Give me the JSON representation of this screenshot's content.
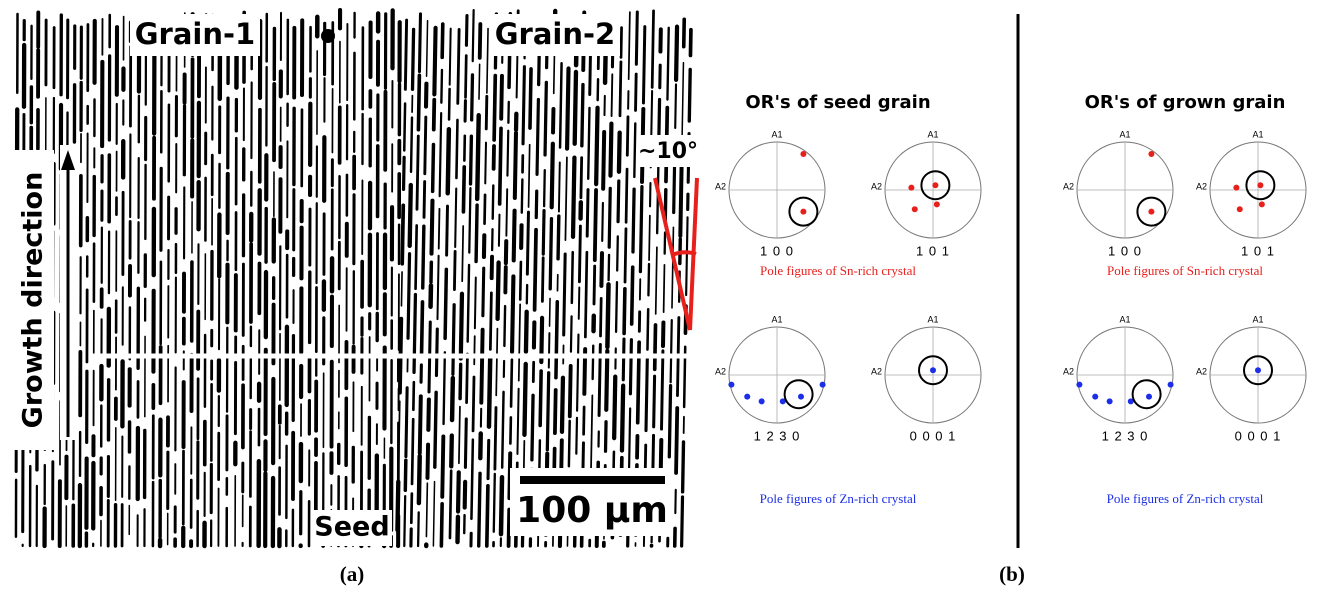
{
  "micrograph": {
    "labels": {
      "grain_1": "Grain-1",
      "grain_2": "Grain-2",
      "angle": "~10°",
      "growth_direction": "Growth direction",
      "seed": "Seed",
      "scale_bar": "100 µm"
    },
    "caption": "(a)"
  },
  "pole_figures": {
    "caption": "(b)",
    "axis_top": "A1",
    "axis_left": "A2",
    "panels": [
      {
        "title": "OR's of seed grain",
        "groups": [
          {
            "caption": "Pole figures of Sn-rich crystal",
            "color": "#e8201c",
            "figures": [
              {
                "label": "1 0 0"
              },
              {
                "label": "1 0 1"
              }
            ]
          },
          {
            "caption": "Pole figures of Zn-rich crystal",
            "color": "#1c2ee8",
            "figures": [
              {
                "label": "1 2 3 0"
              },
              {
                "label": "0 0 0 1"
              }
            ]
          }
        ]
      },
      {
        "title": "OR's of grown grain",
        "groups": [
          {
            "caption": "Pole figures of Sn-rich crystal",
            "color": "#e8201c",
            "figures": [
              {
                "label": "1 0 0"
              },
              {
                "label": "1 0 1"
              }
            ]
          },
          {
            "caption": "Pole figures of Zn-rich crystal",
            "color": "#1c2ee8",
            "figures": [
              {
                "label": "1 2 3 0"
              },
              {
                "label": "0 0 0 1"
              }
            ]
          }
        ]
      }
    ]
  }
}
